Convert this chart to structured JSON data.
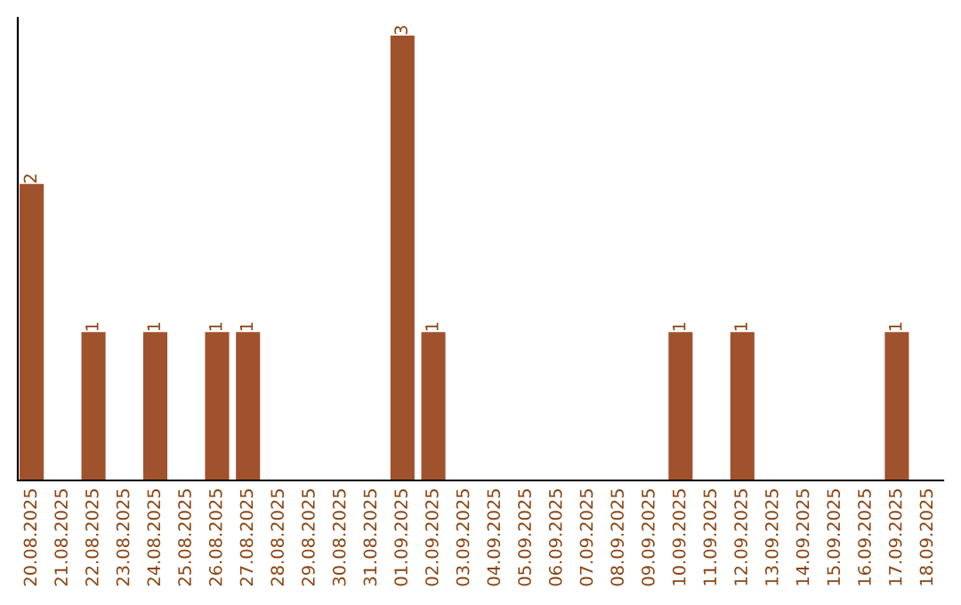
{
  "chart_data": {
    "type": "bar",
    "categories": [
      "20.08.2025",
      "21.08.2025",
      "22.08.2025",
      "23.08.2025",
      "24.08.2025",
      "25.08.2025",
      "26.08.2025",
      "27.08.2025",
      "28.08.2025",
      "29.08.2025",
      "30.08.2025",
      "31.08.2025",
      "01.09.2025",
      "02.09.2025",
      "03.09.2025",
      "04.09.2025",
      "05.09.2025",
      "06.09.2025",
      "07.09.2025",
      "08.09.2025",
      "09.09.2025",
      "10.09.2025",
      "11.09.2025",
      "12.09.2025",
      "13.09.2025",
      "14.09.2025",
      "15.09.2025",
      "16.09.2025",
      "17.09.2025",
      "18.09.2025"
    ],
    "values": [
      2,
      0,
      1,
      0,
      1,
      0,
      1,
      1,
      0,
      0,
      0,
      0,
      3,
      1,
      0,
      0,
      0,
      0,
      0,
      0,
      0,
      1,
      0,
      1,
      0,
      0,
      0,
      0,
      1,
      0
    ],
    "color": "#a0522d",
    "value_labels": [
      "2",
      null,
      "1",
      null,
      "1",
      null,
      "1",
      "1",
      null,
      null,
      null,
      null,
      "3",
      "1",
      null,
      null,
      null,
      null,
      null,
      null,
      null,
      "1",
      null,
      "1",
      null,
      null,
      null,
      null,
      "1",
      null
    ],
    "grid": false,
    "legend": false
  }
}
